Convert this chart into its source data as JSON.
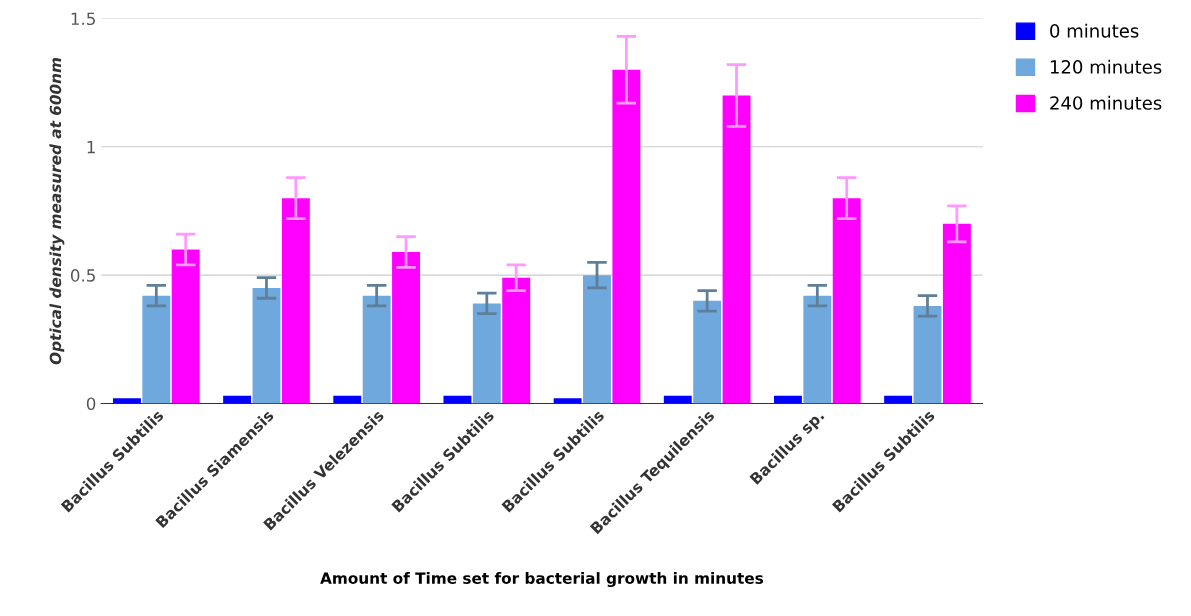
{
  "chart_data": {
    "type": "bar",
    "xlabel": "Amount of Time set for bacterial growth in minutes",
    "ylabel": "Optical density measured at 600nm",
    "categories": [
      "Bacillus Subtilis",
      "Bacillus Siamensis",
      "Bacillus Velezensis",
      "Bacillus Subtilis",
      "Bacillus Subtilis",
      "Bacillus Tequilensis",
      "Bacillus sp.",
      "Bacillus Subtilis"
    ],
    "series": [
      {
        "name": "0 minutes",
        "color": "#0000ff",
        "values": [
          0.02,
          0.03,
          0.03,
          0.03,
          0.02,
          0.03,
          0.03,
          0.03
        ]
      },
      {
        "name": "120 minutes",
        "color": "#6fa8dc",
        "values": [
          0.42,
          0.45,
          0.42,
          0.39,
          0.5,
          0.4,
          0.42,
          0.38
        ],
        "errors": [
          0.04,
          0.04,
          0.04,
          0.04,
          0.05,
          0.04,
          0.04,
          0.04
        ]
      },
      {
        "name": "240 minutes",
        "color": "#ff00ff",
        "values": [
          0.6,
          0.8,
          0.59,
          0.49,
          1.3,
          1.2,
          0.8,
          0.7
        ],
        "errors": [
          0.06,
          0.08,
          0.06,
          0.05,
          0.13,
          0.12,
          0.08,
          0.07
        ]
      }
    ],
    "ylim": [
      0,
      1.5
    ],
    "yticks": [
      0,
      0.5,
      1,
      1.5
    ],
    "grid": "y",
    "legend": "top right"
  }
}
